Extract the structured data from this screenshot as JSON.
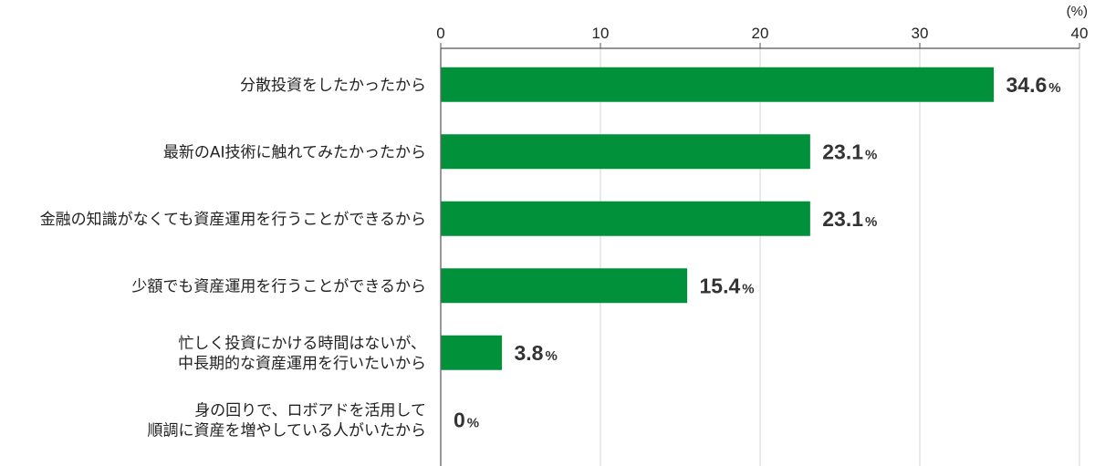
{
  "chart_data": {
    "type": "bar",
    "orientation": "horizontal",
    "unit_label": "(%)",
    "xlim": [
      0,
      40
    ],
    "ticks": [
      0,
      10,
      20,
      30,
      40
    ],
    "grid": true,
    "bar_color": "#00913A",
    "value_suffix": "%",
    "categories": [
      [
        "分散投資をしたかったから"
      ],
      [
        "最新のAI技術に触れてみたかったから"
      ],
      [
        "金融の知識がなくても資産運用を行うことができるから"
      ],
      [
        "少額でも資産運用を行うことができるから"
      ],
      [
        "忙しく投資にかける時間はないが、",
        "中長期的な資産運用を行いたいから"
      ],
      [
        "身の回りで、ロボアドを活用して",
        "順調に資産を増やしている人がいたから"
      ]
    ],
    "values": [
      "34.6",
      "23.1",
      "23.1",
      "15.4",
      "3.8",
      "0"
    ]
  }
}
